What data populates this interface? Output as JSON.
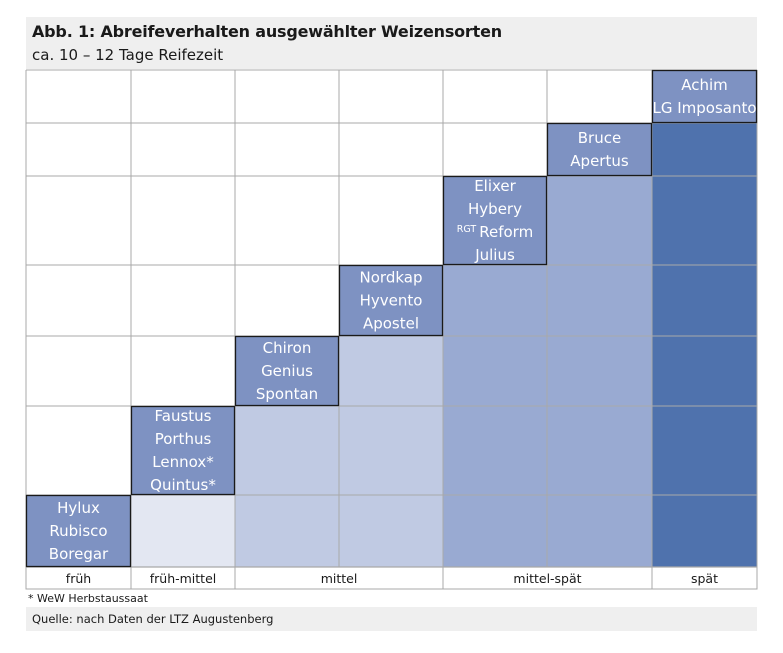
{
  "header": {
    "title": "Abb. 1: Abreifeverhalten ausgewählter Weizensorten",
    "subtitle": "ca. 10 – 12 Tage Reifezeit"
  },
  "footnote": "* WeW Herbstaussaat",
  "source": "Quelle: nach Daten der LTZ Augustenberg",
  "colors": {
    "grid": "#a9a9a9",
    "border": "#1a1a1a",
    "levels": [
      "#ffffff",
      "#e3e7f2",
      "#c0cae3",
      "#99aad2",
      "#4f72ad"
    ],
    "label_boxes": "#7e92c2"
  },
  "chart_data": {
    "type": "table",
    "title": "Abb. 1: Abreifeverhalten ausgewählter Weizensorten",
    "subtitle": "ca. 10 – 12 Tage Reifezeit",
    "categories": [
      "früh",
      "früh-mittel",
      "mittel",
      "mittel-spät",
      "spät"
    ],
    "columns": 7,
    "groups": [
      {
        "label": "früh",
        "columns": [
          0
        ]
      },
      {
        "label": "früh-mittel",
        "columns": [
          1
        ]
      },
      {
        "label": "mittel",
        "columns": [
          2,
          3
        ]
      },
      {
        "label": "mittel-spät",
        "columns": [
          4,
          5
        ]
      },
      {
        "label": "spät",
        "columns": [
          6
        ]
      }
    ],
    "steps": [
      {
        "column": 0,
        "varieties": [
          "Hylux",
          "Rubisco",
          "Boregar"
        ]
      },
      {
        "column": 1,
        "varieties": [
          "Faustus",
          "Porthus",
          "Lennox*",
          "Quintus*"
        ]
      },
      {
        "column": 2,
        "varieties": [
          "Chiron",
          "Genius",
          "Spontan"
        ]
      },
      {
        "column": 3,
        "varieties": [
          "Nordkap",
          "Hyvento",
          "Apostel"
        ]
      },
      {
        "column": 4,
        "varieties": [
          "Elixer",
          "Hybery",
          "Reform",
          "Julius"
        ],
        "prefix": {
          "index": 2,
          "text": "RGT"
        }
      },
      {
        "column": 5,
        "varieties": [
          "Bruce",
          "Apertus"
        ]
      },
      {
        "column": 6,
        "varieties": [
          "Achim",
          "LG Imposanto"
        ]
      }
    ],
    "shade_levels_by_group": [
      1,
      1,
      2,
      3,
      4
    ],
    "grid": true
  }
}
